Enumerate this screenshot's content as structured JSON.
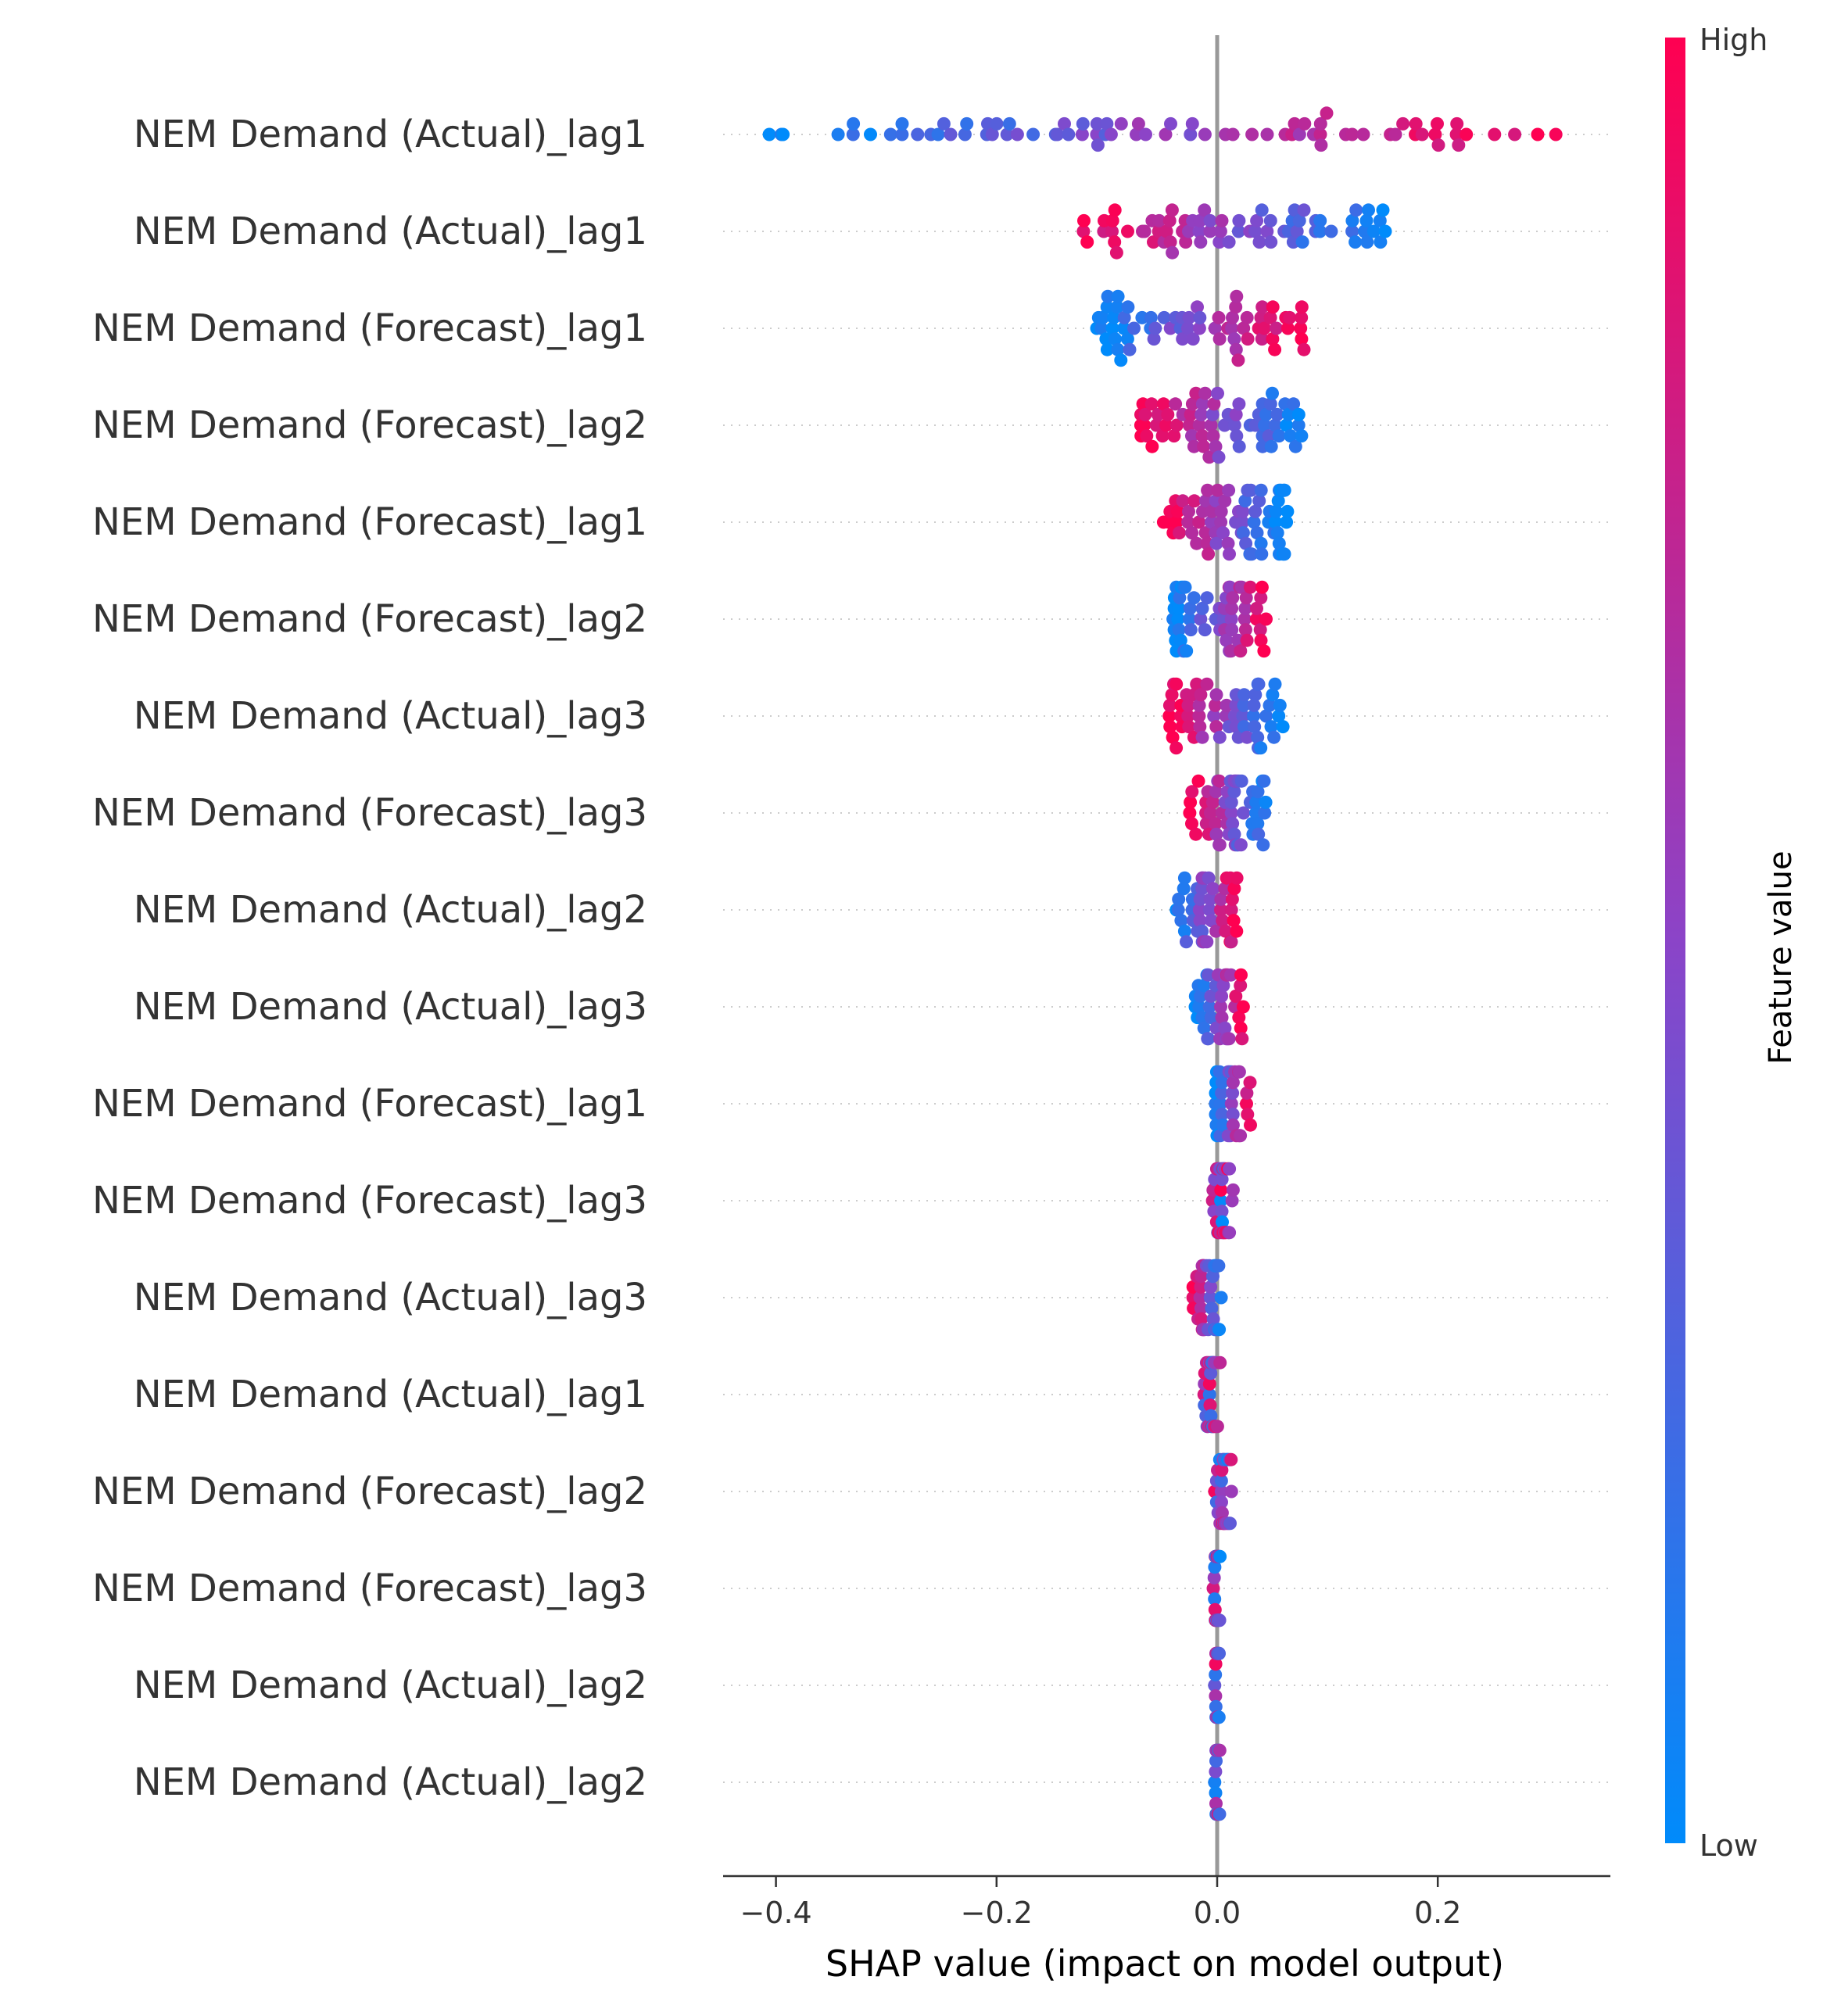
{
  "chart_data": {
    "type": "scatter",
    "subtype": "shap-beeswarm",
    "xlabel": "SHAP value (impact on model output)",
    "xlim": [
      -0.45,
      0.35
    ],
    "xticks": [
      -0.4,
      -0.2,
      0.0,
      0.2
    ],
    "xtick_labels": [
      "−0.4",
      "−0.2",
      "0.0",
      "0.2"
    ],
    "grid": "dotted horizontal lines per feature",
    "features": [
      {
        "label": "NEM Demand (Actual)_lag1",
        "min": -0.41,
        "max": 0.31,
        "skew": -1,
        "n": 80,
        "jitter": 4
      },
      {
        "label": "NEM Demand (Actual)_lag1",
        "min": -0.13,
        "max": 0.155,
        "skew": 1,
        "n": 75,
        "jitter": 3
      },
      {
        "label": "NEM Demand (Forecast)_lag1",
        "min": -0.11,
        "max": 0.08,
        "skew": -1,
        "n": 70,
        "jitter": 3
      },
      {
        "label": "NEM Demand (Forecast)_lag2",
        "min": -0.07,
        "max": 0.08,
        "skew": 1,
        "n": 70,
        "jitter": 3
      },
      {
        "label": "NEM Demand (Forecast)_lag1",
        "min": -0.05,
        "max": 0.065,
        "skew": 1,
        "n": 70,
        "jitter": 3
      },
      {
        "label": "NEM Demand (Forecast)_lag2",
        "min": -0.04,
        "max": 0.05,
        "skew": -1,
        "n": 60,
        "jitter": 3
      },
      {
        "label": "NEM Demand (Actual)_lag3",
        "min": -0.045,
        "max": 0.06,
        "skew": 1,
        "n": 60,
        "jitter": 3
      },
      {
        "label": "NEM Demand (Forecast)_lag3",
        "min": -0.025,
        "max": 0.048,
        "skew": 1,
        "n": 55,
        "jitter": 3
      },
      {
        "label": "NEM Demand (Actual)_lag2",
        "min": -0.04,
        "max": 0.02,
        "skew": -1,
        "n": 45,
        "jitter": 3
      },
      {
        "label": "NEM Demand (Actual)_lag3",
        "min": -0.02,
        "max": 0.025,
        "skew": -1,
        "n": 40,
        "jitter": 3
      },
      {
        "label": "NEM Demand (Forecast)_lag1",
        "min": -0.002,
        "max": 0.032,
        "skew": -1,
        "n": 35,
        "jitter": 3
      },
      {
        "label": "NEM Demand (Forecast)_lag3",
        "min": -0.008,
        "max": 0.018,
        "skew": 0,
        "n": 35,
        "jitter": 3
      },
      {
        "label": "NEM Demand (Actual)_lag3",
        "min": -0.022,
        "max": 0.004,
        "skew": 1,
        "n": 35,
        "jitter": 3
      },
      {
        "label": "NEM Demand (Actual)_lag1",
        "min": -0.014,
        "max": 0.004,
        "skew": 0,
        "n": 30,
        "jitter": 3
      },
      {
        "label": "NEM Demand (Forecast)_lag2",
        "min": -0.003,
        "max": 0.015,
        "skew": 0,
        "n": 30,
        "jitter": 3
      },
      {
        "label": "NEM Demand (Forecast)_lag3",
        "min": -0.004,
        "max": 0.003,
        "skew": 0,
        "n": 30,
        "jitter": 3
      },
      {
        "label": "NEM Demand (Actual)_lag2",
        "min": -0.003,
        "max": 0.003,
        "skew": 0,
        "n": 30,
        "jitter": 3
      },
      {
        "label": "NEM Demand (Actual)_lag2",
        "min": -0.003,
        "max": 0.003,
        "skew": 0,
        "n": 30,
        "jitter": 3
      }
    ],
    "colorbar": {
      "label": "Feature value",
      "high_label": "High",
      "low_label": "Low",
      "low_color": "#008bfb",
      "high_color": "#ff0051"
    }
  },
  "colors": {
    "low": "#008bfb",
    "high": "#ff0051",
    "axis": "#333333",
    "zero_line": "#999999",
    "grid": "#cccccc",
    "text": "#333333"
  }
}
